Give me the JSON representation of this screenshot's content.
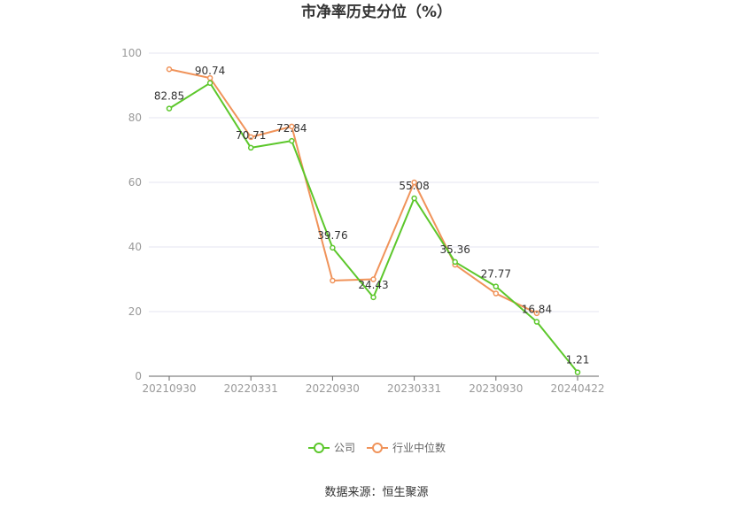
{
  "chart_data": {
    "type": "line",
    "title": "市净率历史分位（%）",
    "xlabel": "",
    "ylabel": "",
    "ylim": [
      0,
      100
    ],
    "yticks": [
      0,
      20,
      40,
      60,
      80,
      100
    ],
    "xticks": [
      "20210930",
      "20220331",
      "20220930",
      "20230331",
      "20230930",
      "20240422"
    ],
    "legend_position": "bottom",
    "grid": true,
    "series": [
      {
        "name": "公司",
        "color": "#5cc72b",
        "values": [
          82.85,
          90.74,
          70.71,
          72.84,
          39.76,
          24.43,
          55.08,
          35.36,
          27.77,
          16.84,
          1.21
        ],
        "labels": [
          "82.85",
          "90.74",
          "70.71",
          "72.84",
          "39.76",
          "24.43",
          "55.08",
          "35.36",
          "27.77",
          "16.84",
          "1.21"
        ]
      },
      {
        "name": "行业中位数",
        "color": "#f0935a",
        "values": [
          95.0,
          92.3,
          74.0,
          77.3,
          29.6,
          30.0,
          60.0,
          34.5,
          25.6,
          19.5
        ]
      }
    ]
  },
  "source": "数据来源：恒生聚源"
}
